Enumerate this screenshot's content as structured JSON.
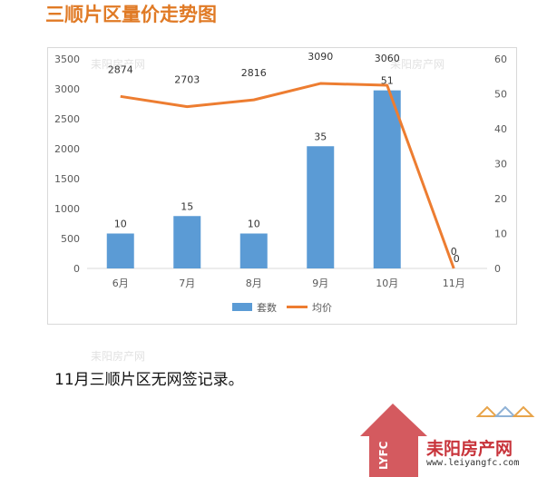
{
  "page": {
    "title": "三顺片区量价走势图",
    "note": "11月三顺片区无网签记录。"
  },
  "watermarks": {
    "text": "耒阳房产网",
    "logo_text": "耒阳房产网",
    "logo_url": "www.leiyangfc.com",
    "logo_mark": "LYFC"
  },
  "colors": {
    "bar": "#5b9bd5",
    "line": "#ed7d31",
    "title": "#e07a25",
    "axis_text": "#595959",
    "grid": "#d9d9d9"
  },
  "chart_data": {
    "type": "bar+line",
    "categories": [
      "6月",
      "7月",
      "8月",
      "9月",
      "10月",
      "11月"
    ],
    "series": [
      {
        "name": "套数",
        "type": "bar",
        "axis": "right",
        "values": [
          10,
          15,
          10,
          35,
          51,
          0
        ]
      },
      {
        "name": "均价",
        "type": "line",
        "axis": "left",
        "values": [
          2874,
          2703,
          2816,
          3090,
          3060,
          0
        ]
      }
    ],
    "y_left": {
      "min": 0,
      "max": 3500,
      "ticks": [
        "0",
        "500",
        "1000",
        "1500",
        "2000",
        "2500",
        "3000",
        "3500"
      ]
    },
    "y_right": {
      "min": 0,
      "max": 60,
      "ticks": [
        "0",
        "10",
        "20",
        "30",
        "40",
        "50",
        "60"
      ]
    },
    "line_labels": [
      "2874",
      "2703",
      "2816",
      "3090",
      "3060",
      "0"
    ],
    "bar_labels": [
      "10",
      "15",
      "10",
      "35",
      "51",
      "0"
    ],
    "grid": false,
    "legend": "bottom"
  }
}
